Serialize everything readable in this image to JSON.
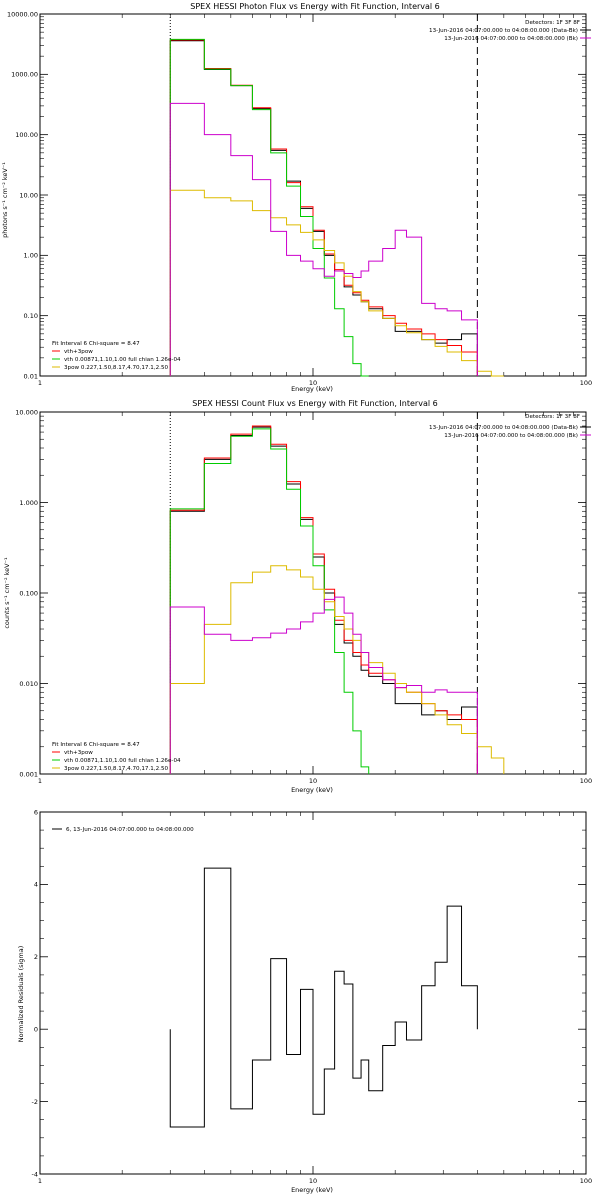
{
  "chart_data": [
    {
      "type": "line",
      "title": "SPEX HESSI Photon Flux vs Energy with Fit Function, Interval 6",
      "xlabel": "Energy (keV)",
      "ylabel": "photons s⁻¹ cm⁻² keV⁻¹",
      "xscale": "log",
      "yscale": "log",
      "xlim": [
        1,
        100
      ],
      "ylim": [
        0.01,
        10000
      ],
      "xticks": [
        "1",
        "10",
        "100"
      ],
      "yticks": [
        "0.01",
        "0.10",
        "1.00",
        "10.00",
        "100.00",
        "1000.00",
        "10000.00"
      ],
      "vlines": [
        {
          "x": 3,
          "style": "dotted"
        },
        {
          "x": 40,
          "style": "dashed"
        }
      ],
      "info": {
        "detectors": "Detectors: 1F 3F 8F",
        "line1": "13-Jun-2016 04:07:00.000 to 04:08:00.000 (Data-Bk)",
        "line2": "13-Jun-2016 04:07:00.000 to 04:08:00.000 (Bk)"
      },
      "legend": {
        "header": "Fit Interval 6   Chi-square = 8.47",
        "entries": [
          "vth+3pow",
          "vth 0.00871,1.10,1.00  full chian 1.26e-04",
          "3pow 0.227,1.50,8.17,4.70,17.1,2.50"
        ]
      },
      "edges": [
        3,
        4,
        5,
        6,
        7,
        8,
        9,
        10,
        11,
        12,
        13,
        14,
        15,
        16,
        18,
        20,
        22,
        25,
        28,
        31,
        35,
        40,
        45,
        50
      ],
      "series": [
        {
          "name": "Data-Bk",
          "color": "#000000",
          "values": [
            3600,
            1200,
            650,
            270,
            55,
            17,
            6,
            2.5,
            1.0,
            0.55,
            0.3,
            0.22,
            0.17,
            0.13,
            0.09,
            0.055,
            0.055,
            0.04,
            0.035,
            0.04,
            0.05,
            null,
            null
          ]
        },
        {
          "name": "vth+3pow",
          "color": "#ff0000",
          "values": [
            3700,
            1250,
            660,
            280,
            58,
            16,
            6.4,
            2.6,
            1.05,
            0.58,
            0.32,
            0.24,
            0.18,
            0.14,
            0.1,
            0.075,
            0.06,
            0.05,
            0.04,
            0.032,
            0.025,
            null,
            null
          ]
        },
        {
          "name": "vth",
          "color": "#00cc00",
          "values": [
            3800,
            1220,
            650,
            260,
            50,
            14,
            4.4,
            1.3,
            0.42,
            0.13,
            0.045,
            0.016,
            0.005,
            null,
            null,
            null,
            null,
            null,
            null,
            null,
            null,
            null,
            null
          ]
        },
        {
          "name": "3pow",
          "color": "#ddbb00",
          "values": [
            12,
            9,
            8,
            5.5,
            4.2,
            3.2,
            2.4,
            1.8,
            1.2,
            0.75,
            0.45,
            0.25,
            0.17,
            0.12,
            0.09,
            0.068,
            0.052,
            0.04,
            0.031,
            0.025,
            0.018,
            0.012,
            0.009
          ]
        },
        {
          "name": "Bk",
          "color": "#cc00cc",
          "values": [
            330,
            100,
            45,
            18,
            2.5,
            1.0,
            0.8,
            0.6,
            0.45,
            0.55,
            0.5,
            0.43,
            0.55,
            0.8,
            1.3,
            2.6,
            2.0,
            0.16,
            0.13,
            0.12,
            0.085,
            null,
            null
          ]
        }
      ]
    },
    {
      "type": "line",
      "title": "SPEX HESSI Count Flux vs Energy with Fit Function, Interval 6",
      "xlabel": "Energy (keV)",
      "ylabel": "counts s⁻¹ cm⁻² keV⁻¹",
      "xscale": "log",
      "yscale": "log",
      "xlim": [
        1,
        100
      ],
      "ylim": [
        0.001,
        10
      ],
      "xticks": [
        "1",
        "10",
        "100"
      ],
      "yticks": [
        "0.001",
        "0.010",
        "0.100",
        "1.000",
        "10.000"
      ],
      "vlines": [
        {
          "x": 3,
          "style": "dotted"
        },
        {
          "x": 40,
          "style": "dashed"
        }
      ],
      "info": {
        "detectors": "Detectors: 1F 3F 8F",
        "line1": "13-Jun-2016 04:07:00.000 to 04:08:00.000 (Data-Bk)",
        "line2": "13-Jun-2016 04:07:00.000 to 04:08:00.000 (Bk)"
      },
      "legend": {
        "header": "Fit Interval 6   Chi-square = 8.47",
        "entries": [
          "vth+3pow",
          "vth 0.00871,1.10,1.00  full chian 1.26e-04",
          "3pow 0.227,1.50,8.17,4.70,17.1,2.50"
        ]
      },
      "edges": [
        3,
        4,
        5,
        6,
        7,
        8,
        9,
        10,
        11,
        12,
        13,
        14,
        15,
        16,
        18,
        20,
        22,
        25,
        28,
        31,
        35,
        40,
        45,
        50
      ],
      "series": [
        {
          "name": "Data-Bk",
          "color": "#000000",
          "values": [
            0.8,
            3.0,
            5.5,
            6.8,
            4.2,
            1.6,
            0.65,
            0.25,
            0.1,
            0.045,
            0.028,
            0.02,
            0.014,
            0.012,
            0.01,
            0.006,
            0.006,
            0.0045,
            0.005,
            0.004,
            0.0055,
            null,
            null
          ]
        },
        {
          "name": "vth+3pow",
          "color": "#ff0000",
          "values": [
            0.82,
            3.1,
            5.7,
            7.0,
            4.4,
            1.7,
            0.68,
            0.27,
            0.11,
            0.05,
            0.03,
            0.022,
            0.016,
            0.013,
            0.011,
            0.009,
            0.008,
            0.006,
            0.005,
            0.0045,
            0.004,
            null,
            null
          ]
        },
        {
          "name": "vth",
          "color": "#00cc00",
          "values": [
            0.85,
            2.7,
            5.4,
            6.5,
            3.9,
            1.4,
            0.55,
            0.2,
            0.065,
            0.022,
            0.008,
            0.003,
            0.0012,
            null,
            null,
            null,
            null,
            null,
            null,
            null,
            null,
            null,
            null
          ]
        },
        {
          "name": "3pow",
          "color": "#ddbb00",
          "values": [
            0.01,
            0.045,
            0.13,
            0.17,
            0.2,
            0.18,
            0.15,
            0.11,
            0.08,
            0.055,
            0.04,
            0.03,
            0.022,
            0.017,
            0.013,
            0.01,
            0.008,
            0.006,
            0.0045,
            0.0035,
            0.0028,
            0.002,
            0.0015
          ]
        },
        {
          "name": "Bk",
          "color": "#cc00cc",
          "values": [
            0.07,
            0.035,
            0.03,
            0.032,
            0.036,
            0.04,
            0.048,
            0.06,
            0.085,
            0.09,
            0.06,
            0.035,
            0.022,
            0.015,
            0.011,
            0.009,
            0.0095,
            0.008,
            0.0085,
            0.008,
            0.008,
            null,
            null
          ]
        }
      ]
    },
    {
      "type": "line",
      "title": "",
      "xlabel": "Energy (keV)",
      "ylabel": "Normalized Residuals (sigma)",
      "xscale": "log",
      "yscale": "linear",
      "xlim": [
        1,
        100
      ],
      "ylim": [
        -4,
        6
      ],
      "xticks": [
        "1",
        "10",
        "100"
      ],
      "yticks": [
        "-4",
        "-2",
        "0",
        "2",
        "4",
        "6"
      ],
      "legend": {
        "entries": [
          "6, 13-Jun-2016 04:07:00.000 to 04:08:00.000"
        ]
      },
      "edges": [
        3,
        4,
        5,
        6,
        7,
        8,
        9,
        10,
        11,
        12,
        13,
        14,
        15,
        16,
        18,
        20,
        22,
        25,
        28,
        31,
        35,
        40
      ],
      "series": [
        {
          "name": "6",
          "color": "#000000",
          "values": [
            -2.7,
            4.45,
            -2.2,
            -0.85,
            1.95,
            -0.7,
            1.1,
            -2.35,
            -1.1,
            1.6,
            1.25,
            -1.35,
            -0.85,
            -1.7,
            -0.45,
            0.2,
            -0.3,
            1.2,
            1.85,
            3.4,
            1.2
          ]
        }
      ]
    }
  ]
}
